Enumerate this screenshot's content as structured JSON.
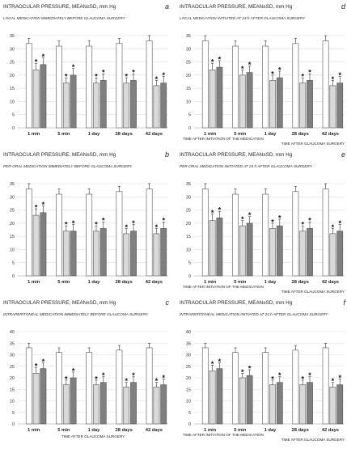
{
  "chart_data": [
    {
      "panel_letter": "a",
      "type": "bar",
      "title": "INTRAOCULAR PRESSURE, MEAN±SD, mm Hg",
      "subtitle": "LOCAL MEDICATION IMMEDIATELY BEFORE GLAUCOMA SURGERY",
      "xlabel": "",
      "ylabel": "",
      "ylim": [
        0,
        35
      ],
      "yticks": [
        0,
        5,
        10,
        15,
        20,
        25,
        30,
        35
      ],
      "grid": true,
      "categories": [
        "1 min",
        "5 min",
        "1 day",
        "28 days",
        "42 days"
      ],
      "series": [
        {
          "values": [
            32,
            31,
            31,
            32,
            33
          ],
          "errors": [
            2,
            2,
            2,
            2,
            2
          ],
          "fill": "#ffffff",
          "stars": [
            false,
            false,
            false,
            false,
            false
          ]
        },
        {
          "values": [
            22,
            17,
            17,
            17,
            16
          ],
          "errors": [
            2.5,
            2,
            2,
            2,
            2
          ],
          "fill": "#d9d9d9",
          "stars": [
            true,
            true,
            true,
            true,
            true
          ]
        },
        {
          "values": [
            24,
            20,
            18,
            18,
            17
          ],
          "errors": [
            2.5,
            2.5,
            2.5,
            2.5,
            2.5
          ],
          "fill": "#7f7f7f",
          "stars": [
            true,
            true,
            true,
            true,
            true
          ]
        }
      ]
    },
    {
      "panel_letter": "d",
      "type": "bar",
      "title": "INTRAOCULAR PRESSURE, MEAN±SD, mm Hg",
      "subtitle": "LOCAL MEDICATION INITIATED AT 24 h AFTER GLAUCOMA SURGERY",
      "xlabel": "TIME AFTER INITIATION OF THE MEDICATION",
      "xlabel2": "TIME AFTER GLAUCOMA SURGERY",
      "ylabel": "",
      "ylim": [
        0,
        35
      ],
      "yticks": [
        0,
        5,
        10,
        15,
        20,
        25,
        30,
        35
      ],
      "grid": true,
      "categories": [
        "1 min",
        "5 min",
        "1 day",
        "28 days",
        "42 days"
      ],
      "series": [
        {
          "values": [
            33,
            31,
            31,
            32,
            33
          ],
          "errors": [
            2,
            2,
            2,
            2,
            2
          ],
          "fill": "#ffffff",
          "stars": [
            false,
            false,
            false,
            false,
            false
          ]
        },
        {
          "values": [
            22,
            20,
            18,
            17,
            16
          ],
          "errors": [
            2.5,
            2,
            2,
            2,
            2
          ],
          "fill": "#d9d9d9",
          "stars": [
            true,
            true,
            true,
            true,
            true
          ]
        },
        {
          "values": [
            23,
            21,
            19,
            18,
            17
          ],
          "errors": [
            2.5,
            2.5,
            2.5,
            2.5,
            2.5
          ],
          "fill": "#7f7f7f",
          "stars": [
            true,
            true,
            true,
            true,
            true
          ]
        }
      ]
    },
    {
      "panel_letter": "b",
      "type": "bar",
      "title": "INTRAOCULAR PRESSURE, MEAN±SD, mm Hg",
      "subtitle": "PER-ORAL MEDICATION IMMEDIATELY BEFORE GLAUCOMA SURGERY",
      "xlabel": "",
      "ylabel": "",
      "ylim": [
        0,
        35
      ],
      "yticks": [
        0,
        5,
        10,
        15,
        20,
        25,
        30,
        35
      ],
      "grid": true,
      "categories": [
        "1 min",
        "5 min",
        "1 day",
        "28 days",
        "42 days"
      ],
      "series": [
        {
          "values": [
            33,
            31,
            31,
            32,
            33
          ],
          "errors": [
            2,
            2,
            2,
            2,
            2
          ],
          "fill": "#ffffff",
          "stars": [
            false,
            false,
            false,
            false,
            false
          ]
        },
        {
          "values": [
            23,
            17,
            17,
            16,
            16
          ],
          "errors": [
            2.5,
            2,
            2,
            2,
            2
          ],
          "fill": "#d9d9d9",
          "stars": [
            true,
            true,
            true,
            true,
            true
          ]
        },
        {
          "values": [
            24,
            17,
            18,
            17,
            18
          ],
          "errors": [
            2.5,
            2.5,
            2.5,
            2.5,
            2.5
          ],
          "fill": "#7f7f7f",
          "stars": [
            true,
            true,
            true,
            true,
            true
          ]
        }
      ]
    },
    {
      "panel_letter": "e",
      "type": "bar",
      "title": "INTRAOCULAR PRESSURE, MEAN±SD, mm Hg",
      "subtitle": "PER-ORAL MEDICATION INITIATED AT 24 h AFTER GLAUCOMA SURGERY",
      "xlabel": "TIME AFTER INITIATION OF THE MEDICATION",
      "xlabel2": "TIME AFTER GLAUCOMA SURGERY",
      "ylabel": "",
      "ylim": [
        0,
        35
      ],
      "yticks": [
        0,
        5,
        10,
        15,
        20,
        25,
        30,
        35
      ],
      "grid": true,
      "categories": [
        "1 min",
        "5 min",
        "1 day",
        "28 days",
        "42 days"
      ],
      "series": [
        {
          "values": [
            33,
            31,
            31,
            32,
            33
          ],
          "errors": [
            2,
            2,
            2,
            2,
            2
          ],
          "fill": "#ffffff",
          "stars": [
            false,
            false,
            false,
            false,
            false
          ]
        },
        {
          "values": [
            21,
            19,
            18,
            17,
            16
          ],
          "errors": [
            2.5,
            2,
            2,
            2,
            2
          ],
          "fill": "#d9d9d9",
          "stars": [
            true,
            true,
            true,
            true,
            true
          ]
        },
        {
          "values": [
            22,
            20,
            19,
            18,
            17
          ],
          "errors": [
            2.5,
            2.5,
            2.5,
            2.5,
            2.5
          ],
          "fill": "#7f7f7f",
          "stars": [
            true,
            true,
            true,
            true,
            true
          ]
        }
      ]
    },
    {
      "panel_letter": "c",
      "type": "bar",
      "title": "INTRAOCULAR PRESSURE, MEAN±SD, mm Hg",
      "subtitle": "INTRAPERITONEAL MEDICATION IMMEDIATELY BEFORE GLAUCOMA SURGERY",
      "xlabel": "TIME AFTER GLAUCOMA SURGERY",
      "ylabel": "",
      "ylim": [
        0,
        40
      ],
      "yticks": [
        0,
        5,
        10,
        15,
        20,
        25,
        30,
        35,
        40
      ],
      "grid": true,
      "categories": [
        "1 min",
        "5 min",
        "1 day",
        "28 days",
        "42 days"
      ],
      "series": [
        {
          "values": [
            33,
            31,
            31,
            32,
            33
          ],
          "errors": [
            2,
            2,
            2,
            2,
            2
          ],
          "fill": "#ffffff",
          "stars": [
            false,
            false,
            false,
            false,
            false
          ]
        },
        {
          "values": [
            22,
            17,
            17,
            16,
            16
          ],
          "errors": [
            2.5,
            2,
            2,
            2,
            2
          ],
          "fill": "#d9d9d9",
          "stars": [
            true,
            true,
            true,
            true,
            true
          ]
        },
        {
          "values": [
            24,
            20,
            18,
            18,
            17
          ],
          "errors": [
            2.5,
            2.5,
            2.5,
            2.5,
            2.5
          ],
          "fill": "#7f7f7f",
          "stars": [
            true,
            true,
            true,
            true,
            true
          ]
        }
      ]
    },
    {
      "panel_letter": "f",
      "type": "bar",
      "title": "INTRAOCULAR PRESSURE, MEAN±SD, mm Hg",
      "subtitle": "INTRAPERITONEAL MEDICATION INITIATED AT 24 h AFTER GLAUCOMA SURGERY",
      "xlabel": "TIME AFTER INITIATION OF THE MEDICATION",
      "xlabel2": "TIME AFTER GLAUCOMA SURGERY",
      "ylabel": "",
      "ylim": [
        0,
        40
      ],
      "yticks": [
        0,
        5,
        10,
        15,
        20,
        25,
        30,
        35,
        40
      ],
      "grid": true,
      "categories": [
        "1 min",
        "5 min",
        "1 day",
        "28 days",
        "42 days"
      ],
      "series": [
        {
          "values": [
            33,
            31,
            31,
            32,
            33
          ],
          "errors": [
            2,
            2,
            2,
            2,
            2
          ],
          "fill": "#ffffff",
          "stars": [
            false,
            false,
            false,
            false,
            false
          ]
        },
        {
          "values": [
            23,
            20,
            17,
            17,
            16
          ],
          "errors": [
            2.5,
            2,
            2,
            2,
            2
          ],
          "fill": "#d9d9d9",
          "stars": [
            true,
            true,
            true,
            true,
            true
          ]
        },
        {
          "values": [
            24,
            21,
            18,
            18,
            17
          ],
          "errors": [
            2.5,
            2.5,
            2.5,
            2.5,
            2.5
          ],
          "fill": "#7f7f7f",
          "stars": [
            true,
            true,
            true,
            true,
            true
          ]
        }
      ]
    }
  ]
}
